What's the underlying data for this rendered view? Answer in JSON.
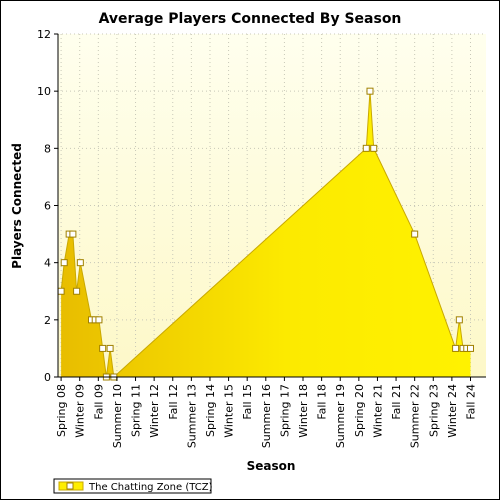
{
  "chart_data": {
    "type": "area",
    "title": "Average Players Connected By Season",
    "xlabel": "Season",
    "ylabel": "Players Connected",
    "ylim": [
      0,
      12
    ],
    "yticks": [
      0,
      2,
      4,
      6,
      8,
      10,
      12
    ],
    "grid": true,
    "legend_placement": "bottom-left",
    "x_tick_labels": [
      "Spring 08",
      "Winter 09",
      "Fall 09",
      "Summer 10",
      "Spring 11",
      "Winter 12",
      "Fall 12",
      "Summer 13",
      "Spring 14",
      "Winter 15",
      "Fall 15",
      "Summer 16",
      "Spring 17",
      "Winter 18",
      "Fall 18",
      "Summer 19",
      "Spring 20",
      "Winter 21",
      "Fall 21",
      "Summer 22",
      "Spring 23",
      "Winter 24",
      "Fall 24"
    ],
    "x_tick_positions": [
      0,
      3,
      6,
      9,
      12,
      15,
      18,
      21,
      24,
      27,
      30,
      33,
      36,
      39,
      42,
      45,
      48,
      51,
      54,
      57,
      60,
      63,
      66
    ],
    "x_count": 69,
    "series": [
      {
        "name": "The Chatting Zone (TCZ)",
        "color": "#ffee00",
        "points": [
          [
            0,
            3
          ],
          [
            0.5,
            4
          ],
          [
            1.3,
            5
          ],
          [
            1.9,
            5
          ],
          [
            2.5,
            3
          ],
          [
            3.1,
            4
          ],
          [
            4.9,
            2
          ],
          [
            5.5,
            2
          ],
          [
            6.1,
            2
          ],
          [
            6.7,
            1
          ],
          [
            7.3,
            0
          ],
          [
            7.9,
            1
          ],
          [
            8.5,
            0
          ],
          [
            49.2,
            8
          ],
          [
            49.8,
            10
          ],
          [
            50.4,
            8
          ],
          [
            57,
            5
          ],
          [
            63.6,
            1
          ],
          [
            64.2,
            2
          ],
          [
            64.8,
            1
          ],
          [
            65.4,
            1
          ],
          [
            66,
            1
          ]
        ]
      }
    ]
  }
}
